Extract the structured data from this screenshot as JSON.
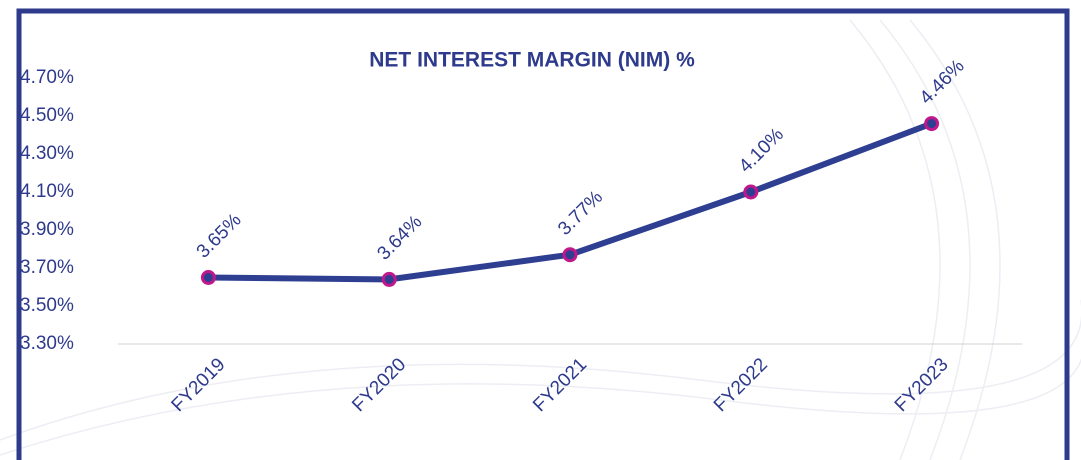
{
  "chart_data": {
    "type": "line",
    "title": "NET INTEREST MARGIN (NIM) %",
    "categories": [
      "FY2019",
      "FY2020",
      "FY2021",
      "FY2022",
      "FY2023"
    ],
    "series": [
      {
        "name": "NIM",
        "color": "#2e3f92",
        "marker_color": "#c0178c",
        "values": [
          3.65,
          3.64,
          3.77,
          4.1,
          4.46
        ],
        "value_labels": [
          "3.65%",
          "3.64%",
          "3.77%",
          "4.10%",
          "4.46%"
        ]
      }
    ],
    "ylim": [
      3.3,
      4.7
    ],
    "yticks": [
      {
        "value": 3.3,
        "label": "3.30%"
      },
      {
        "value": 3.5,
        "label": "3.50%"
      },
      {
        "value": 3.7,
        "label": "3.70%"
      },
      {
        "value": 3.9,
        "label": "3.90%"
      },
      {
        "value": 4.1,
        "label": "4.10%"
      },
      {
        "value": 4.3,
        "label": "4.30%"
      },
      {
        "value": 4.5,
        "label": "4.50%"
      },
      {
        "value": 4.7,
        "label": "4.70%"
      }
    ]
  }
}
